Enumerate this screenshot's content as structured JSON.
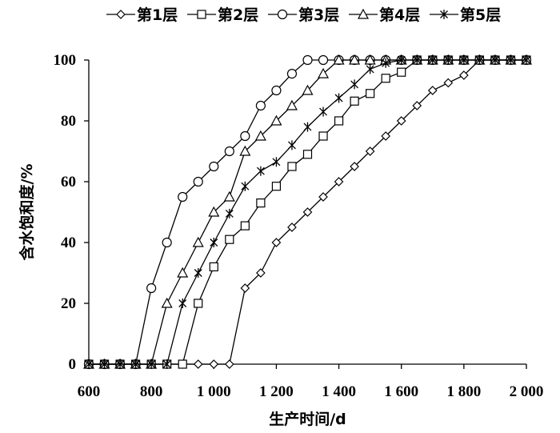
{
  "chart_data": {
    "type": "line",
    "title": "",
    "xlabel": "生产时间/d",
    "ylabel": "含水饱和度/%",
    "xlim": [
      600,
      2000
    ],
    "ylim": [
      0,
      100
    ],
    "x_ticks": [
      600,
      800,
      1000,
      1200,
      1400,
      1600,
      1800,
      2000
    ],
    "x_tick_labels": [
      "600",
      "800",
      "1 000",
      "1 200",
      "1 400",
      "1 600",
      "1 800",
      "2 000"
    ],
    "y_ticks": [
      0,
      20,
      40,
      60,
      80,
      100
    ],
    "y_tick_labels": [
      "0",
      "20",
      "40",
      "60",
      "80",
      "100"
    ],
    "grid": false,
    "legend_position": "top",
    "series": [
      {
        "name": "第1层",
        "marker": "diamond",
        "x": [
          600,
          650,
          700,
          750,
          800,
          850,
          900,
          950,
          1000,
          1050,
          1100,
          1150,
          1200,
          1250,
          1300,
          1350,
          1400,
          1450,
          1500,
          1550,
          1600,
          1650,
          1700,
          1750,
          1800,
          1850,
          1900,
          1950,
          2000
        ],
        "values": [
          0,
          0,
          0,
          0,
          0,
          0,
          0,
          0,
          0,
          0,
          25,
          30,
          40,
          45,
          50,
          55,
          60,
          65,
          70,
          75,
          80,
          85,
          90,
          92.5,
          95,
          100,
          100,
          100,
          100
        ]
      },
      {
        "name": "第2层",
        "marker": "square",
        "x": [
          600,
          650,
          700,
          750,
          800,
          850,
          900,
          950,
          1000,
          1050,
          1100,
          1150,
          1200,
          1250,
          1300,
          1350,
          1400,
          1450,
          1500,
          1550,
          1600,
          1650,
          1700,
          1750,
          1800,
          1850,
          1900,
          1950,
          2000
        ],
        "values": [
          0,
          0,
          0,
          0,
          0,
          0,
          0,
          20,
          32,
          41,
          45.5,
          53,
          58.5,
          65,
          69,
          75,
          80,
          86.5,
          89,
          94,
          96,
          100,
          100,
          100,
          100,
          100,
          100,
          100,
          100
        ]
      },
      {
        "name": "第3层",
        "marker": "circle",
        "x": [
          600,
          650,
          700,
          750,
          800,
          850,
          900,
          950,
          1000,
          1050,
          1100,
          1150,
          1200,
          1250,
          1300,
          1350,
          1400,
          1450,
          1500,
          1550,
          1600,
          1650,
          1700,
          1750,
          1800,
          1850,
          1900,
          1950,
          2000
        ],
        "values": [
          0,
          0,
          0,
          0,
          25,
          40,
          55,
          60,
          65,
          70,
          75,
          85,
          90,
          95.5,
          100,
          100,
          100,
          100,
          100,
          100,
          100,
          100,
          100,
          100,
          100,
          100,
          100,
          100,
          100
        ]
      },
      {
        "name": "第4层",
        "marker": "triangle",
        "x": [
          600,
          650,
          700,
          750,
          800,
          850,
          900,
          950,
          1000,
          1050,
          1100,
          1150,
          1200,
          1250,
          1300,
          1350,
          1400,
          1450,
          1500,
          1550,
          1600,
          1650,
          1700,
          1750,
          1800,
          1850,
          1900,
          1950,
          2000
        ],
        "values": [
          0,
          0,
          0,
          0,
          0,
          20,
          30,
          40,
          50,
          55,
          70,
          75,
          80,
          85,
          90,
          95.5,
          100,
          100,
          100,
          100,
          100,
          100,
          100,
          100,
          100,
          100,
          100,
          100,
          100
        ]
      },
      {
        "name": "第5层",
        "marker": "asterisk",
        "x": [
          600,
          650,
          700,
          750,
          800,
          850,
          900,
          950,
          1000,
          1050,
          1100,
          1150,
          1200,
          1250,
          1300,
          1350,
          1400,
          1450,
          1500,
          1550,
          1600,
          1650,
          1700,
          1750,
          1800,
          1850,
          1900,
          1950,
          2000
        ],
        "values": [
          0,
          0,
          0,
          0,
          0,
          0,
          20,
          30,
          40,
          49.5,
          58.5,
          63.5,
          66.5,
          72,
          78,
          83,
          87.5,
          92,
          97,
          99,
          100,
          100,
          100,
          100,
          100,
          100,
          100,
          100,
          100
        ]
      }
    ]
  }
}
